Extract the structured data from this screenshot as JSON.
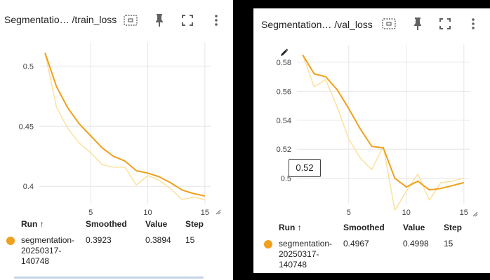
{
  "colors": {
    "smoothed": "#f0a01c",
    "raw": "#fce19c",
    "grid": "#e6e6e6",
    "text": "#212121"
  },
  "icons": [
    "fit-domain-icon",
    "pin-icon",
    "fullscreen-icon",
    "more-vert-icon",
    "resize-handle-icon",
    "edit-icon"
  ],
  "panels": [
    {
      "title": "Segmentatio… /train_loss",
      "table": {
        "headers": {
          "run": "Run ↑",
          "smoothed": "Smoothed",
          "value": "Value",
          "step": "Step"
        },
        "row": {
          "run": "segmentation-\n20250317-\n140748",
          "smoothed": "0.3923",
          "value": "0.3894",
          "step": "15"
        }
      }
    },
    {
      "title": "Segmentation… /val_loss",
      "tooltip": "0.52",
      "table": {
        "headers": {
          "run": "Run ↑",
          "smoothed": "Smoothed",
          "value": "Value",
          "step": "Step"
        },
        "row": {
          "run": "segmentation-\n20250317-\n140748",
          "smoothed": "0.4967",
          "value": "0.4998",
          "step": "15"
        }
      }
    }
  ],
  "chart_data": [
    {
      "type": "line",
      "title": "Segmentatio… /train_loss",
      "x": [
        1,
        2,
        3,
        4,
        5,
        6,
        7,
        8,
        9,
        10,
        11,
        12,
        13,
        14,
        15
      ],
      "series": [
        {
          "values": [
            0.511,
            0.466,
            0.448,
            0.436,
            0.428,
            0.418,
            0.416,
            0.416,
            0.401,
            0.409,
            0.405,
            0.398,
            0.389,
            0.391,
            0.389
          ]
        },
        {
          "values": [
            0.511,
            0.483,
            0.465,
            0.452,
            0.442,
            0.432,
            0.425,
            0.421,
            0.413,
            0.411,
            0.408,
            0.403,
            0.397,
            0.394,
            0.392
          ]
        }
      ],
      "xticks": [
        5,
        10,
        15
      ],
      "yticks": [
        0.4,
        0.45,
        0.5
      ],
      "xlim": [
        0.5,
        15.5
      ],
      "ylim": [
        0.385,
        0.52
      ],
      "grid": true
    },
    {
      "type": "line",
      "title": "Segmentation… /val_loss",
      "x": [
        1,
        2,
        3,
        4,
        5,
        6,
        7,
        8,
        9,
        10,
        11,
        12,
        13,
        14,
        15
      ],
      "series": [
        {
          "values": [
            0.585,
            0.563,
            0.568,
            0.549,
            0.527,
            0.514,
            0.506,
            0.522,
            0.478,
            0.491,
            0.503,
            0.485,
            0.497,
            0.498,
            0.5
          ]
        },
        {
          "values": [
            0.585,
            0.572,
            0.57,
            0.561,
            0.548,
            0.534,
            0.522,
            0.521,
            0.5,
            0.494,
            0.498,
            0.492,
            0.493,
            0.495,
            0.497
          ]
        }
      ],
      "xticks": [
        5,
        10,
        15
      ],
      "yticks": [
        0.5,
        0.52,
        0.54,
        0.56,
        0.58
      ],
      "xlim": [
        0.5,
        15.5
      ],
      "ylim": [
        0.482,
        0.592
      ],
      "grid": true
    }
  ]
}
